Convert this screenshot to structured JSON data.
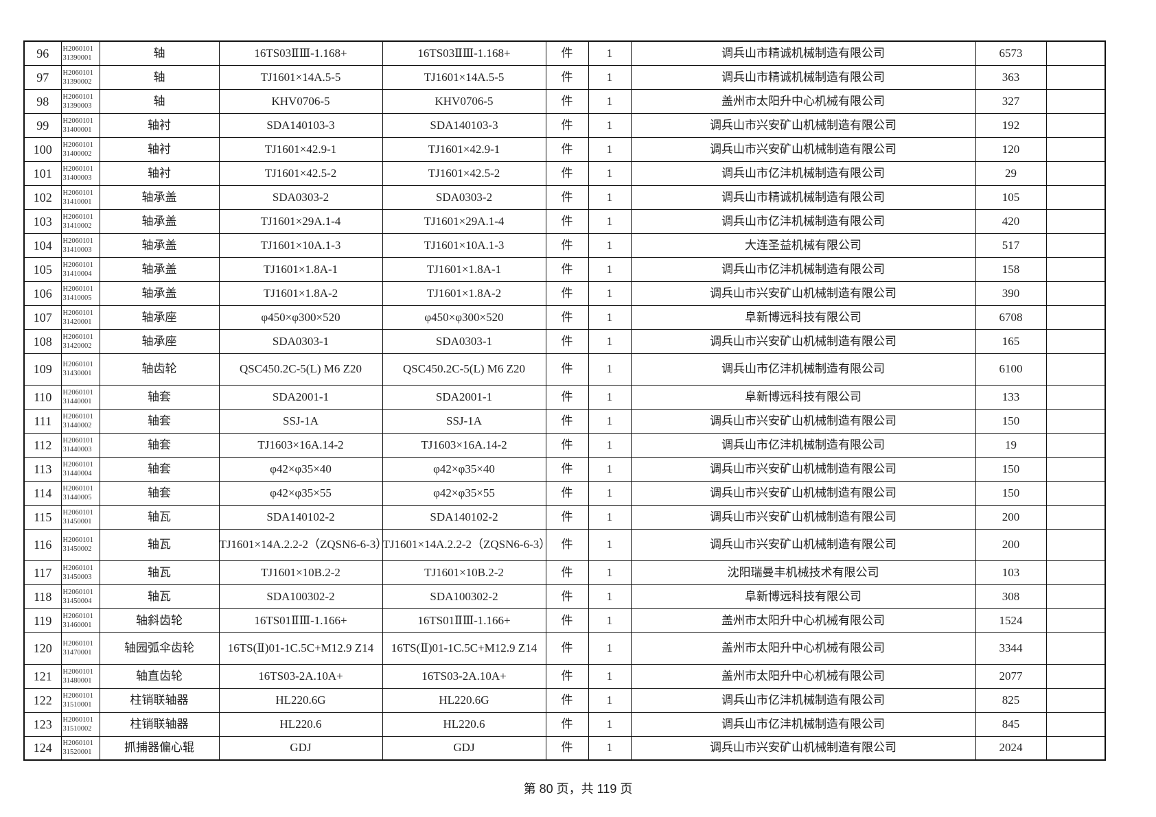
{
  "rows": [
    {
      "no": "96",
      "code1": "H2060101",
      "code2": "31390001",
      "name": "轴",
      "spec": "16TS03ⅡⅢ-1.168+",
      "drawing": "16TS03ⅡⅢ-1.168+",
      "unit": "件",
      "qty": "1",
      "supplier": "调兵山市精诚机械制造有限公司",
      "price": "6573",
      "note": ""
    },
    {
      "no": "97",
      "code1": "H2060101",
      "code2": "31390002",
      "name": "轴",
      "spec": "TJ1601×14A.5-5",
      "drawing": "TJ1601×14A.5-5",
      "unit": "件",
      "qty": "1",
      "supplier": "调兵山市精诚机械制造有限公司",
      "price": "363",
      "note": ""
    },
    {
      "no": "98",
      "code1": "H2060101",
      "code2": "31390003",
      "name": "轴",
      "spec": "KHV0706-5",
      "drawing": "KHV0706-5",
      "unit": "件",
      "qty": "1",
      "supplier": "盖州市太阳升中心机械有限公司",
      "price": "327",
      "note": ""
    },
    {
      "no": "99",
      "code1": "H2060101",
      "code2": "31400001",
      "name": "轴衬",
      "spec": "SDA140103-3",
      "drawing": "SDA140103-3",
      "unit": "件",
      "qty": "1",
      "supplier": "调兵山市兴安矿山机械制造有限公司",
      "price": "192",
      "note": ""
    },
    {
      "no": "100",
      "code1": "H2060101",
      "code2": "31400002",
      "name": "轴衬",
      "spec": "TJ1601×42.9-1",
      "drawing": "TJ1601×42.9-1",
      "unit": "件",
      "qty": "1",
      "supplier": "调兵山市兴安矿山机械制造有限公司",
      "price": "120",
      "note": ""
    },
    {
      "no": "101",
      "code1": "H2060101",
      "code2": "31400003",
      "name": "轴衬",
      "spec": "TJ1601×42.5-2",
      "drawing": "TJ1601×42.5-2",
      "unit": "件",
      "qty": "1",
      "supplier": "调兵山市亿沣机械制造有限公司",
      "price": "29",
      "note": ""
    },
    {
      "no": "102",
      "code1": "H2060101",
      "code2": "31410001",
      "name": "轴承盖",
      "spec": "SDA0303-2",
      "drawing": "SDA0303-2",
      "unit": "件",
      "qty": "1",
      "supplier": "调兵山市精诚机械制造有限公司",
      "price": "105",
      "note": ""
    },
    {
      "no": "103",
      "code1": "H2060101",
      "code2": "31410002",
      "name": "轴承盖",
      "spec": "TJ1601×29A.1-4",
      "drawing": "TJ1601×29A.1-4",
      "unit": "件",
      "qty": "1",
      "supplier": "调兵山市亿沣机械制造有限公司",
      "price": "420",
      "note": ""
    },
    {
      "no": "104",
      "code1": "H2060101",
      "code2": "31410003",
      "name": "轴承盖",
      "spec": "TJ1601×10A.1-3",
      "drawing": "TJ1601×10A.1-3",
      "unit": "件",
      "qty": "1",
      "supplier": "大连圣益机械有限公司",
      "price": "517",
      "note": ""
    },
    {
      "no": "105",
      "code1": "H2060101",
      "code2": "31410004",
      "name": "轴承盖",
      "spec": "TJ1601×1.8A-1",
      "drawing": "TJ1601×1.8A-1",
      "unit": "件",
      "qty": "1",
      "supplier": "调兵山市亿沣机械制造有限公司",
      "price": "158",
      "note": ""
    },
    {
      "no": "106",
      "code1": "H2060101",
      "code2": "31410005",
      "name": "轴承盖",
      "spec": "TJ1601×1.8A-2",
      "drawing": "TJ1601×1.8A-2",
      "unit": "件",
      "qty": "1",
      "supplier": "调兵山市兴安矿山机械制造有限公司",
      "price": "390",
      "note": ""
    },
    {
      "no": "107",
      "code1": "H2060101",
      "code2": "31420001",
      "name": "轴承座",
      "spec": "φ450×φ300×520",
      "drawing": "φ450×φ300×520",
      "unit": "件",
      "qty": "1",
      "supplier": "阜新博远科技有限公司",
      "price": "6708",
      "note": ""
    },
    {
      "no": "108",
      "code1": "H2060101",
      "code2": "31420002",
      "name": "轴承座",
      "spec": "SDA0303-1",
      "drawing": "SDA0303-1",
      "unit": "件",
      "qty": "1",
      "supplier": "调兵山市兴安矿山机械制造有限公司",
      "price": "165",
      "note": ""
    },
    {
      "no": "109",
      "code1": "H2060101",
      "code2": "31430001",
      "name": "轴齿轮",
      "spec": "QSC450.2C-5(L) M6 Z20",
      "drawing": "QSC450.2C-5(L) M6 Z20",
      "unit": "件",
      "qty": "1",
      "supplier": "调兵山市亿沣机械制造有限公司",
      "price": "6100",
      "note": "",
      "tall": true
    },
    {
      "no": "110",
      "code1": "H2060101",
      "code2": "31440001",
      "name": "轴套",
      "spec": "SDA2001-1",
      "drawing": "SDA2001-1",
      "unit": "件",
      "qty": "1",
      "supplier": "阜新博远科技有限公司",
      "price": "133",
      "note": ""
    },
    {
      "no": "111",
      "code1": "H2060101",
      "code2": "31440002",
      "name": "轴套",
      "spec": "SSJ-1A",
      "drawing": "SSJ-1A",
      "unit": "件",
      "qty": "1",
      "supplier": "调兵山市兴安矿山机械制造有限公司",
      "price": "150",
      "note": ""
    },
    {
      "no": "112",
      "code1": "H2060101",
      "code2": "31440003",
      "name": "轴套",
      "spec": "TJ1603×16A.14-2",
      "drawing": "TJ1603×16A.14-2",
      "unit": "件",
      "qty": "1",
      "supplier": "调兵山市亿沣机械制造有限公司",
      "price": "19",
      "note": ""
    },
    {
      "no": "113",
      "code1": "H2060101",
      "code2": "31440004",
      "name": "轴套",
      "spec": "φ42×φ35×40",
      "drawing": "φ42×φ35×40",
      "unit": "件",
      "qty": "1",
      "supplier": "调兵山市兴安矿山机械制造有限公司",
      "price": "150",
      "note": ""
    },
    {
      "no": "114",
      "code1": "H2060101",
      "code2": "31440005",
      "name": "轴套",
      "spec": "φ42×φ35×55",
      "drawing": "φ42×φ35×55",
      "unit": "件",
      "qty": "1",
      "supplier": "调兵山市兴安矿山机械制造有限公司",
      "price": "150",
      "note": ""
    },
    {
      "no": "115",
      "code1": "H2060101",
      "code2": "31450001",
      "name": "轴瓦",
      "spec": "SDA140102-2",
      "drawing": "SDA140102-2",
      "unit": "件",
      "qty": "1",
      "supplier": "调兵山市兴安矿山机械制造有限公司",
      "price": "200",
      "note": ""
    },
    {
      "no": "116",
      "code1": "H2060101",
      "code2": "31450002",
      "name": "轴瓦",
      "spec": "TJ1601×14A.2.2-2（ZQSN6-6-3）",
      "drawing": "TJ1601×14A.2.2-2（ZQSN6-6-3）",
      "unit": "件",
      "qty": "1",
      "supplier": "调兵山市兴安矿山机械制造有限公司",
      "price": "200",
      "note": "",
      "tall": true
    },
    {
      "no": "117",
      "code1": "H2060101",
      "code2": "31450003",
      "name": "轴瓦",
      "spec": "TJ1601×10B.2-2",
      "drawing": "TJ1601×10B.2-2",
      "unit": "件",
      "qty": "1",
      "supplier": "沈阳瑞曼丰机械技术有限公司",
      "price": "103",
      "note": ""
    },
    {
      "no": "118",
      "code1": "H2060101",
      "code2": "31450004",
      "name": "轴瓦",
      "spec": "SDA100302-2",
      "drawing": "SDA100302-2",
      "unit": "件",
      "qty": "1",
      "supplier": "阜新博远科技有限公司",
      "price": "308",
      "note": ""
    },
    {
      "no": "119",
      "code1": "H2060101",
      "code2": "31460001",
      "name": "轴斜齿轮",
      "spec": "16TS01ⅡⅢ-1.166+",
      "drawing": "16TS01ⅡⅢ-1.166+",
      "unit": "件",
      "qty": "1",
      "supplier": "盖州市太阳升中心机械有限公司",
      "price": "1524",
      "note": ""
    },
    {
      "no": "120",
      "code1": "H2060101",
      "code2": "31470001",
      "name": "轴园弧伞齿轮",
      "spec": "16TS(Ⅱ)01-1C.5C+M12.9 Z14",
      "drawing": "16TS(Ⅱ)01-1C.5C+M12.9 Z14",
      "unit": "件",
      "qty": "1",
      "supplier": "盖州市太阳升中心机械有限公司",
      "price": "3344",
      "note": "",
      "tall": true
    },
    {
      "no": "121",
      "code1": "H2060101",
      "code2": "31480001",
      "name": "轴直齿轮",
      "spec": "16TS03-2A.10A+",
      "drawing": "16TS03-2A.10A+",
      "unit": "件",
      "qty": "1",
      "supplier": "盖州市太阳升中心机械有限公司",
      "price": "2077",
      "note": ""
    },
    {
      "no": "122",
      "code1": "H2060101",
      "code2": "31510001",
      "name": "柱销联轴器",
      "spec": "HL220.6G",
      "drawing": "HL220.6G",
      "unit": "件",
      "qty": "1",
      "supplier": "调兵山市亿沣机械制造有限公司",
      "price": "825",
      "note": ""
    },
    {
      "no": "123",
      "code1": "H2060101",
      "code2": "31510002",
      "name": "柱销联轴器",
      "spec": "HL220.6",
      "drawing": "HL220.6",
      "unit": "件",
      "qty": "1",
      "supplier": "调兵山市亿沣机械制造有限公司",
      "price": "845",
      "note": ""
    },
    {
      "no": "124",
      "code1": "H2060101",
      "code2": "31520001",
      "name": "抓捕器偏心辊",
      "spec": "GDJ",
      "drawing": "GDJ",
      "unit": "件",
      "qty": "1",
      "supplier": "调兵山市兴安矿山机械制造有限公司",
      "price": "2024",
      "note": ""
    }
  ],
  "footer": {
    "text": "第 80 页，共 119 页"
  }
}
